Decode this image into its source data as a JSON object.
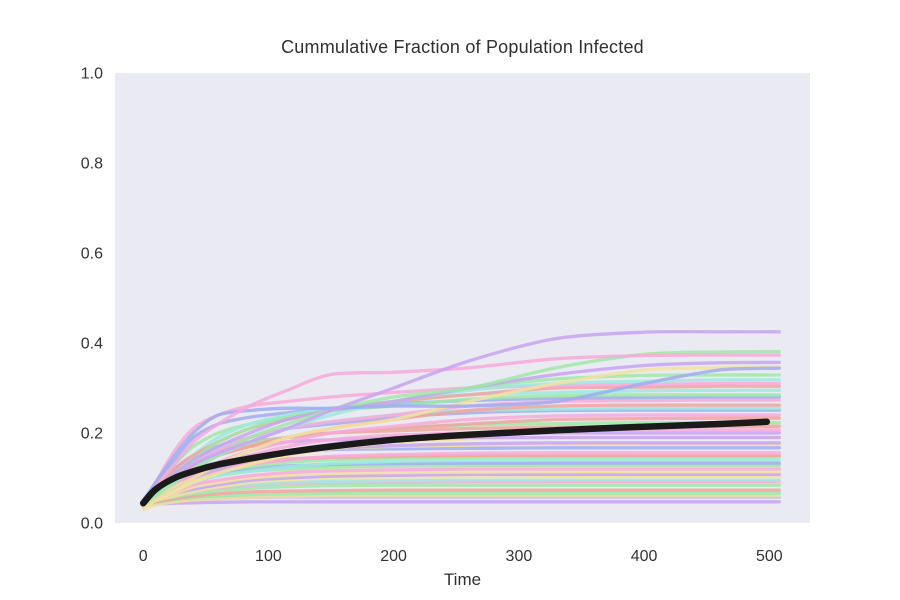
{
  "chart_data": {
    "type": "line",
    "title": "Cummulative Fraction of Population Infected",
    "xlabel": "Time",
    "ylabel": "",
    "xlim": [
      -22.5,
      532.5
    ],
    "ylim": [
      0,
      1
    ],
    "x_ticks": [
      0,
      100,
      200,
      300,
      400,
      500
    ],
    "x_tick_labels": [
      "0",
      "100",
      "200",
      "300",
      "400",
      "500"
    ],
    "y_ticks": [
      0.0,
      0.2,
      0.4,
      0.6,
      0.8,
      1.0
    ],
    "y_tick_labels": [
      "0.0",
      "0.2",
      "0.4",
      "0.6",
      "0.8",
      "1.0"
    ],
    "grid": false,
    "legend": "none",
    "plot_bg_color": "#eaeaf2",
    "text_color": "#333333",
    "mean_color": "#1a1a1a",
    "palette": {
      "pink": "#f8a9d9",
      "purple": "#c9a3f2",
      "periwinkle": "#9fadf0",
      "green": "#9fe9a4",
      "cyan": "#9de9e1",
      "salmon": "#f2a49d",
      "yellow": "#f2e2a0"
    },
    "t": [
      0,
      10,
      25,
      40,
      60,
      85,
      115,
      150,
      200,
      260,
      330,
      400,
      460,
      508
    ],
    "t_mean": [
      0,
      10,
      25,
      40,
      60,
      85,
      115,
      150,
      200,
      260,
      330,
      400,
      460,
      498
    ],
    "mean_series": {
      "name": "ensemble-mean",
      "values": [
        0.044,
        0.075,
        0.1,
        0.115,
        0.13,
        0.143,
        0.157,
        0.17,
        0.185,
        0.196,
        0.206,
        0.214,
        0.22,
        0.225
      ]
    },
    "trajectories": [
      {
        "color": "#c9a3f2",
        "values": [
          0.04,
          0.042,
          0.044,
          0.045,
          0.046,
          0.047,
          0.047,
          0.047,
          0.047,
          0.047,
          0.047,
          0.047,
          0.047,
          0.047
        ]
      },
      {
        "color": "#9fadf0",
        "values": [
          0.04,
          0.045,
          0.05,
          0.053,
          0.055,
          0.057,
          0.058,
          0.058,
          0.058,
          0.058,
          0.058,
          0.058,
          0.058,
          0.058
        ]
      },
      {
        "color": "#f2e2a0",
        "values": [
          0.03,
          0.04,
          0.047,
          0.051,
          0.054,
          0.057,
          0.059,
          0.06,
          0.06,
          0.06,
          0.06,
          0.06,
          0.06,
          0.06
        ]
      },
      {
        "color": "#9fe9a4",
        "values": [
          0.04,
          0.046,
          0.052,
          0.057,
          0.06,
          0.063,
          0.065,
          0.066,
          0.066,
          0.066,
          0.066,
          0.066,
          0.066,
          0.066
        ]
      },
      {
        "color": "#f2a49d",
        "values": [
          0.04,
          0.047,
          0.054,
          0.06,
          0.065,
          0.069,
          0.071,
          0.072,
          0.073,
          0.073,
          0.073,
          0.073,
          0.073,
          0.073
        ]
      },
      {
        "color": "#9fe9a4",
        "values": [
          0.04,
          0.05,
          0.058,
          0.065,
          0.072,
          0.077,
          0.081,
          0.083,
          0.084,
          0.084,
          0.084,
          0.084,
          0.084,
          0.084
        ]
      },
      {
        "color": "#f8a9d9",
        "values": [
          0.04,
          0.05,
          0.06,
          0.07,
          0.078,
          0.084,
          0.088,
          0.09,
          0.091,
          0.092,
          0.092,
          0.092,
          0.092,
          0.092
        ]
      },
      {
        "color": "#9de9e1",
        "values": [
          0.04,
          0.05,
          0.062,
          0.072,
          0.08,
          0.086,
          0.09,
          0.093,
          0.094,
          0.095,
          0.095,
          0.095,
          0.095,
          0.095
        ]
      },
      {
        "color": "#f2e2a0",
        "values": [
          0.04,
          0.05,
          0.06,
          0.07,
          0.08,
          0.09,
          0.096,
          0.1,
          0.102,
          0.103,
          0.103,
          0.103,
          0.103,
          0.103
        ]
      },
      {
        "color": "#c9a3f2",
        "values": [
          0.04,
          0.05,
          0.065,
          0.075,
          0.085,
          0.095,
          0.1,
          0.104,
          0.106,
          0.108,
          0.108,
          0.108,
          0.108,
          0.108
        ]
      },
      {
        "color": "#f2e2a0",
        "values": [
          0.035,
          0.05,
          0.065,
          0.08,
          0.09,
          0.1,
          0.106,
          0.11,
          0.112,
          0.113,
          0.114,
          0.114,
          0.114,
          0.114
        ]
      },
      {
        "color": "#f8a9d9",
        "values": [
          0.04,
          0.055,
          0.07,
          0.085,
          0.095,
          0.105,
          0.112,
          0.116,
          0.118,
          0.12,
          0.12,
          0.12,
          0.12,
          0.12
        ]
      },
      {
        "color": "#9fe9a4",
        "values": [
          0.04,
          0.055,
          0.075,
          0.09,
          0.105,
          0.115,
          0.12,
          0.124,
          0.126,
          0.128,
          0.128,
          0.128,
          0.128,
          0.128
        ]
      },
      {
        "color": "#9fadf0",
        "values": [
          0.04,
          0.06,
          0.08,
          0.095,
          0.11,
          0.12,
          0.127,
          0.13,
          0.132,
          0.133,
          0.133,
          0.133,
          0.133,
          0.133
        ]
      },
      {
        "color": "#9de9e1",
        "values": [
          0.04,
          0.055,
          0.075,
          0.09,
          0.105,
          0.115,
          0.125,
          0.132,
          0.137,
          0.139,
          0.14,
          0.14,
          0.14,
          0.14
        ]
      },
      {
        "color": "#9fe9a4",
        "values": [
          0.04,
          0.06,
          0.085,
          0.1,
          0.115,
          0.125,
          0.135,
          0.14,
          0.144,
          0.146,
          0.147,
          0.147,
          0.147,
          0.147
        ]
      },
      {
        "color": "#f2a49d",
        "values": [
          0.04,
          0.06,
          0.09,
          0.11,
          0.125,
          0.135,
          0.142,
          0.146,
          0.148,
          0.15,
          0.15,
          0.15,
          0.15,
          0.15
        ]
      },
      {
        "color": "#f8a9d9",
        "values": [
          0.04,
          0.06,
          0.08,
          0.1,
          0.115,
          0.13,
          0.14,
          0.148,
          0.152,
          0.155,
          0.156,
          0.156,
          0.156,
          0.156
        ]
      },
      {
        "color": "#9fadf0",
        "values": [
          0.045,
          0.07,
          0.1,
          0.12,
          0.135,
          0.15,
          0.158,
          0.163,
          0.165,
          0.166,
          0.167,
          0.167,
          0.167,
          0.167
        ]
      },
      {
        "color": "#f2e2a0",
        "values": [
          0.035,
          0.05,
          0.07,
          0.095,
          0.12,
          0.14,
          0.155,
          0.165,
          0.17,
          0.173,
          0.175,
          0.175,
          0.175,
          0.175
        ]
      },
      {
        "color": "#c9a3f2",
        "values": [
          0.04,
          0.06,
          0.085,
          0.105,
          0.125,
          0.14,
          0.155,
          0.165,
          0.172,
          0.176,
          0.178,
          0.178,
          0.178,
          0.178
        ]
      },
      {
        "color": "#f2e2a0",
        "values": [
          0.035,
          0.05,
          0.07,
          0.09,
          0.11,
          0.13,
          0.15,
          0.165,
          0.18,
          0.187,
          0.189,
          0.189,
          0.189,
          0.189
        ]
      },
      {
        "color": "#c9a3f2",
        "values": [
          0.04,
          0.07,
          0.11,
          0.14,
          0.16,
          0.17,
          0.18,
          0.185,
          0.188,
          0.19,
          0.19,
          0.19,
          0.19,
          0.19
        ]
      },
      {
        "color": "#c9a3f2",
        "values": [
          0.04,
          0.055,
          0.08,
          0.1,
          0.12,
          0.14,
          0.16,
          0.175,
          0.19,
          0.197,
          0.2,
          0.2,
          0.2,
          0.2
        ]
      },
      {
        "color": "#f8a9d9",
        "values": [
          0.04,
          0.06,
          0.09,
          0.11,
          0.13,
          0.15,
          0.17,
          0.185,
          0.195,
          0.2,
          0.205,
          0.207,
          0.207,
          0.207
        ]
      },
      {
        "color": "#f2a49d",
        "values": [
          0.04,
          0.075,
          0.115,
          0.145,
          0.165,
          0.18,
          0.19,
          0.2,
          0.205,
          0.21,
          0.213,
          0.215,
          0.215,
          0.215
        ]
      },
      {
        "color": "#9fe9a4",
        "values": [
          0.04,
          0.06,
          0.09,
          0.12,
          0.15,
          0.175,
          0.19,
          0.2,
          0.21,
          0.218,
          0.221,
          0.223,
          0.223,
          0.223
        ]
      },
      {
        "color": "#f2a49d",
        "values": [
          0.04,
          0.07,
          0.1,
          0.125,
          0.15,
          0.17,
          0.19,
          0.2,
          0.21,
          0.22,
          0.23,
          0.232,
          0.233,
          0.233
        ]
      },
      {
        "color": "#f8a9d9",
        "values": [
          0.04,
          0.06,
          0.085,
          0.11,
          0.135,
          0.16,
          0.18,
          0.2,
          0.215,
          0.23,
          0.238,
          0.24,
          0.24,
          0.24
        ]
      },
      {
        "color": "#9fadf0",
        "values": [
          0.045,
          0.08,
          0.12,
          0.15,
          0.17,
          0.19,
          0.21,
          0.22,
          0.235,
          0.245,
          0.25,
          0.251,
          0.251,
          0.251
        ]
      },
      {
        "color": "#9de9e1",
        "values": [
          0.04,
          0.065,
          0.1,
          0.135,
          0.165,
          0.19,
          0.21,
          0.225,
          0.24,
          0.25,
          0.253,
          0.255,
          0.255,
          0.255
        ]
      },
      {
        "color": "#f2a49d",
        "values": [
          0.04,
          0.065,
          0.095,
          0.12,
          0.15,
          0.17,
          0.19,
          0.21,
          0.23,
          0.25,
          0.26,
          0.262,
          0.262,
          0.262
        ]
      },
      {
        "color": "#f8a9d9",
        "values": [
          0.04,
          0.07,
          0.1,
          0.13,
          0.16,
          0.19,
          0.21,
          0.225,
          0.24,
          0.26,
          0.27,
          0.272,
          0.273,
          0.273
        ]
      },
      {
        "color": "#9fadf0",
        "values": [
          0.045,
          0.09,
          0.14,
          0.19,
          0.22,
          0.235,
          0.245,
          0.255,
          0.265,
          0.272,
          0.277,
          0.279,
          0.28,
          0.28
        ]
      },
      {
        "color": "#9fe9a4",
        "values": [
          0.045,
          0.08,
          0.13,
          0.17,
          0.2,
          0.22,
          0.235,
          0.25,
          0.26,
          0.275,
          0.283,
          0.285,
          0.285,
          0.285
        ]
      },
      {
        "color": "#9de9e1",
        "values": [
          0.04,
          0.07,
          0.11,
          0.15,
          0.19,
          0.22,
          0.24,
          0.255,
          0.27,
          0.285,
          0.29,
          0.294,
          0.295,
          0.295
        ]
      },
      {
        "color": "#f2a49d",
        "values": [
          0.045,
          0.08,
          0.12,
          0.15,
          0.18,
          0.21,
          0.23,
          0.25,
          0.27,
          0.285,
          0.3,
          0.302,
          0.304,
          0.304
        ]
      },
      {
        "color": "#f8a9d9",
        "values": [
          0.04,
          0.09,
          0.16,
          0.21,
          0.24,
          0.26,
          0.27,
          0.28,
          0.29,
          0.3,
          0.305,
          0.308,
          0.31,
          0.31
        ]
      },
      {
        "color": "#9de9e1",
        "values": [
          0.04,
          0.06,
          0.09,
          0.12,
          0.15,
          0.18,
          0.21,
          0.24,
          0.27,
          0.295,
          0.31,
          0.315,
          0.318,
          0.318
        ]
      },
      {
        "color": "#9fe9a4",
        "values": [
          0.04,
          0.06,
          0.1,
          0.14,
          0.18,
          0.21,
          0.235,
          0.25,
          0.27,
          0.3,
          0.32,
          0.328,
          0.329,
          0.329
        ]
      },
      {
        "color": "#f2e2a0",
        "values": [
          0.04,
          0.055,
          0.08,
          0.1,
          0.13,
          0.16,
          0.19,
          0.21,
          0.23,
          0.27,
          0.31,
          0.34,
          0.345,
          0.347
        ]
      },
      {
        "color": "#c9a3f2",
        "values": [
          0.045,
          0.075,
          0.11,
          0.14,
          0.17,
          0.2,
          0.23,
          0.25,
          0.27,
          0.3,
          0.33,
          0.35,
          0.356,
          0.357
        ]
      },
      {
        "color": "#9fe9a4",
        "values": [
          0.04,
          0.06,
          0.09,
          0.12,
          0.15,
          0.19,
          0.22,
          0.25,
          0.28,
          0.3,
          0.345,
          0.375,
          0.38,
          0.381
        ]
      },
      {
        "color": "#9fadf0",
        "values": [
          0.05,
          0.09,
          0.15,
          0.2,
          0.24,
          0.25,
          0.255,
          0.255,
          0.26,
          0.26,
          0.27,
          0.31,
          0.34,
          0.344
        ]
      },
      {
        "color": "#f8a9d9",
        "values": [
          0.04,
          0.08,
          0.13,
          0.18,
          0.22,
          0.26,
          0.295,
          0.33,
          0.335,
          0.345,
          0.365,
          0.372,
          0.373,
          0.373
        ]
      },
      {
        "color": "#c9a3f2",
        "values": [
          0.045,
          0.07,
          0.1,
          0.13,
          0.155,
          0.18,
          0.21,
          0.25,
          0.3,
          0.36,
          0.41,
          0.424,
          0.425,
          0.425
        ]
      }
    ]
  }
}
